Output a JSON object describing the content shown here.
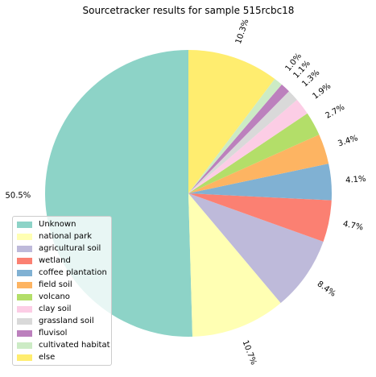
{
  "chart_data": {
    "type": "pie",
    "title": "Sourcetracker results for sample 515rcbc18",
    "start_angle_deg": 90,
    "direction": "counterclockwise",
    "slices": [
      {
        "label": "Unknown",
        "value": 50.5,
        "pct_label": "50.5%",
        "color": "#8dd3c7"
      },
      {
        "label": "national park",
        "value": 10.7,
        "pct_label": "10.7%",
        "color": "#ffffb3"
      },
      {
        "label": "agricultural soil",
        "value": 8.4,
        "pct_label": "8.4%",
        "color": "#bebada"
      },
      {
        "label": "wetland",
        "value": 4.7,
        "pct_label": "4.7%",
        "color": "#fb8072"
      },
      {
        "label": "coffee plantation",
        "value": 4.1,
        "pct_label": "4.1%",
        "color": "#80b1d3"
      },
      {
        "label": "field soil",
        "value": 3.4,
        "pct_label": "3.4%",
        "color": "#fdb462"
      },
      {
        "label": "volcano",
        "value": 2.7,
        "pct_label": "2.7%",
        "color": "#b3de69"
      },
      {
        "label": "clay soil",
        "value": 1.9,
        "pct_label": "1.9%",
        "color": "#fccde5"
      },
      {
        "label": "grassland soil",
        "value": 1.3,
        "pct_label": "1.3%",
        "color": "#d9d9d9"
      },
      {
        "label": "fluvisol",
        "value": 1.1,
        "pct_label": "1.1%",
        "color": "#bc80bd"
      },
      {
        "label": "cultivated habitat",
        "value": 1.0,
        "pct_label": "1.0%",
        "color": "#ccebc5"
      },
      {
        "label": "else",
        "value": 10.3,
        "pct_label": "10.3%",
        "color": "#ffed6f"
      }
    ],
    "legend_placement": "lower-left"
  }
}
